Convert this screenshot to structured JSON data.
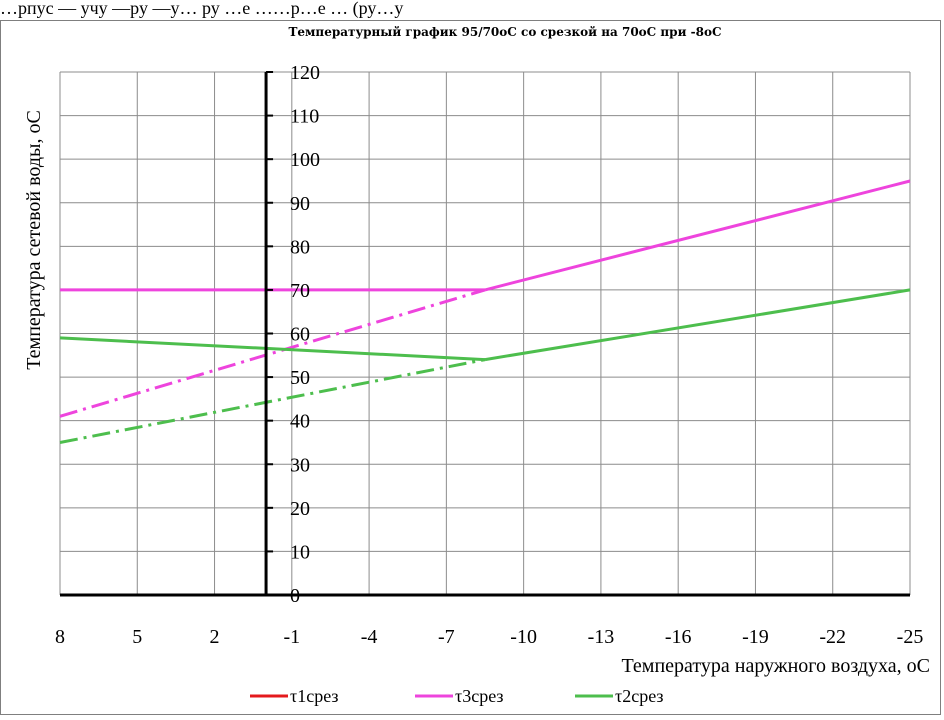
{
  "header_text": "…рпус — учу —ру —у… ру …е ……р…е … (ру…у",
  "chart_data": {
    "type": "line",
    "title": "Температурный график 95/70оС со срезкой на 70оС при -8оС",
    "xlabel": "Температура наружного воздуха, оС",
    "ylabel": "Температура сетевой воды, оС",
    "x_ticks": [
      8,
      5,
      2,
      -1,
      -4,
      -7,
      -10,
      -13,
      -16,
      -19,
      -22,
      -25
    ],
    "xlim": [
      8,
      -25
    ],
    "ylim": [
      0,
      120
    ],
    "y_ticks": [
      0,
      10,
      20,
      30,
      40,
      50,
      60,
      70,
      80,
      90,
      100,
      110,
      120
    ],
    "grid": true,
    "y_axis_position_x": 0,
    "legend_position": "bottom",
    "series": [
      {
        "name": "τ1срез",
        "color": "#e41a1c",
        "segments": []
      },
      {
        "name": "τ3срез",
        "color": "#ee44dd",
        "segments": [
          {
            "style": "solid",
            "x": [
              8,
              -8.5
            ],
            "y": [
              70,
              70
            ]
          },
          {
            "style": "solid",
            "x": [
              -8.5,
              -25
            ],
            "y": [
              70,
              95
            ]
          },
          {
            "style": "dashdot",
            "x": [
              8,
              -8.5
            ],
            "y": [
              41,
              70
            ]
          }
        ]
      },
      {
        "name": "τ2срез",
        "color": "#4dbe4d",
        "segments": [
          {
            "style": "solid",
            "x": [
              8,
              -8.5
            ],
            "y": [
              59,
              54
            ]
          },
          {
            "style": "solid",
            "x": [
              -8.5,
              -25
            ],
            "y": [
              54,
              70
            ]
          },
          {
            "style": "dashdot",
            "x": [
              8,
              -8.5
            ],
            "y": [
              35,
              54
            ]
          }
        ]
      }
    ]
  }
}
